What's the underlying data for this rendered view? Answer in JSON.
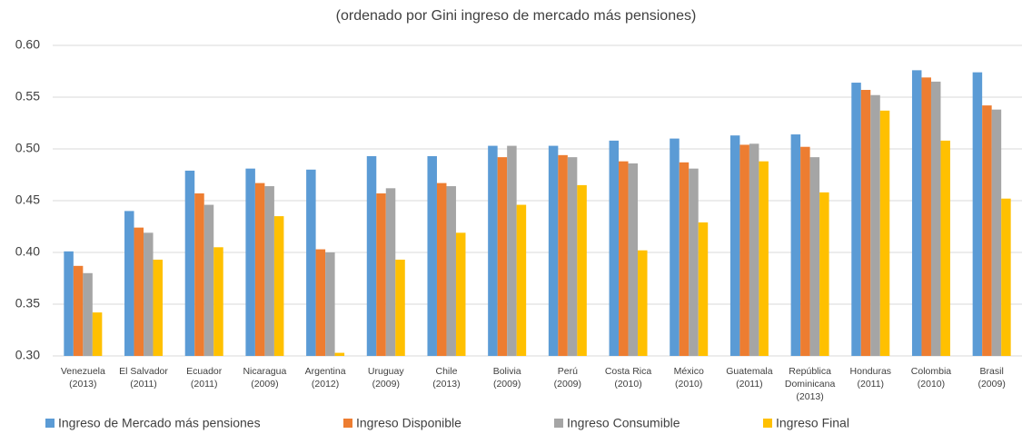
{
  "chart_data": {
    "type": "bar",
    "title": "(ordenado por Gini ingreso de mercado más pensiones)",
    "categories": [
      [
        "Venezuela",
        "(2013)"
      ],
      [
        "El Salvador",
        "(2011)"
      ],
      [
        "Ecuador",
        "(2011)"
      ],
      [
        "Nicaragua",
        "(2009)"
      ],
      [
        "Argentina",
        "(2012)"
      ],
      [
        "Uruguay",
        "(2009)"
      ],
      [
        "Chile",
        "(2013)"
      ],
      [
        "Bolivia",
        "(2009)"
      ],
      [
        "Perú",
        "(2009)"
      ],
      [
        "Costa Rica",
        "(2010)"
      ],
      [
        "México",
        "(2010)"
      ],
      [
        "Guatemala",
        "(2011)"
      ],
      [
        "República",
        "Dominicana",
        "(2013)"
      ],
      [
        "Honduras",
        "(2011)"
      ],
      [
        "Colombia",
        "(2010)"
      ],
      [
        "Brasil",
        "(2009)"
      ]
    ],
    "series": [
      {
        "name": "Ingreso de Mercado más pensiones",
        "color": "#5b9bd5",
        "values": [
          0.401,
          0.44,
          0.479,
          0.481,
          0.48,
          0.493,
          0.493,
          0.503,
          0.503,
          0.508,
          0.51,
          0.513,
          0.514,
          0.564,
          0.576,
          0.574
        ]
      },
      {
        "name": "Ingreso Disponible",
        "color": "#ed7d31",
        "values": [
          0.387,
          0.424,
          0.457,
          0.467,
          0.403,
          0.457,
          0.467,
          0.492,
          0.494,
          0.488,
          0.487,
          0.504,
          0.502,
          0.557,
          0.569,
          0.542
        ]
      },
      {
        "name": "Ingreso Consumible",
        "color": "#a5a5a5",
        "values": [
          0.38,
          0.419,
          0.446,
          0.464,
          0.4,
          0.462,
          0.464,
          0.503,
          0.492,
          0.486,
          0.481,
          0.505,
          0.492,
          0.552,
          0.565,
          0.538
        ]
      },
      {
        "name": "Ingreso Final",
        "color": "#ffc000",
        "values": [
          0.342,
          0.393,
          0.405,
          0.435,
          0.303,
          0.393,
          0.419,
          0.446,
          0.465,
          0.402,
          0.429,
          0.488,
          0.458,
          0.537,
          0.508,
          0.452
        ]
      }
    ],
    "ylim": [
      0.3,
      0.6
    ],
    "yticks": [
      {
        "value": 0.3,
        "label": "0.30"
      },
      {
        "value": 0.35,
        "label": "0.35"
      },
      {
        "value": 0.4,
        "label": "0.40"
      },
      {
        "value": 0.45,
        "label": "0.45"
      },
      {
        "value": 0.5,
        "label": "0.50"
      },
      {
        "value": 0.55,
        "label": "0.55"
      },
      {
        "value": 0.6,
        "label": "0.60"
      }
    ],
    "grid": true,
    "legend": "bottom"
  }
}
